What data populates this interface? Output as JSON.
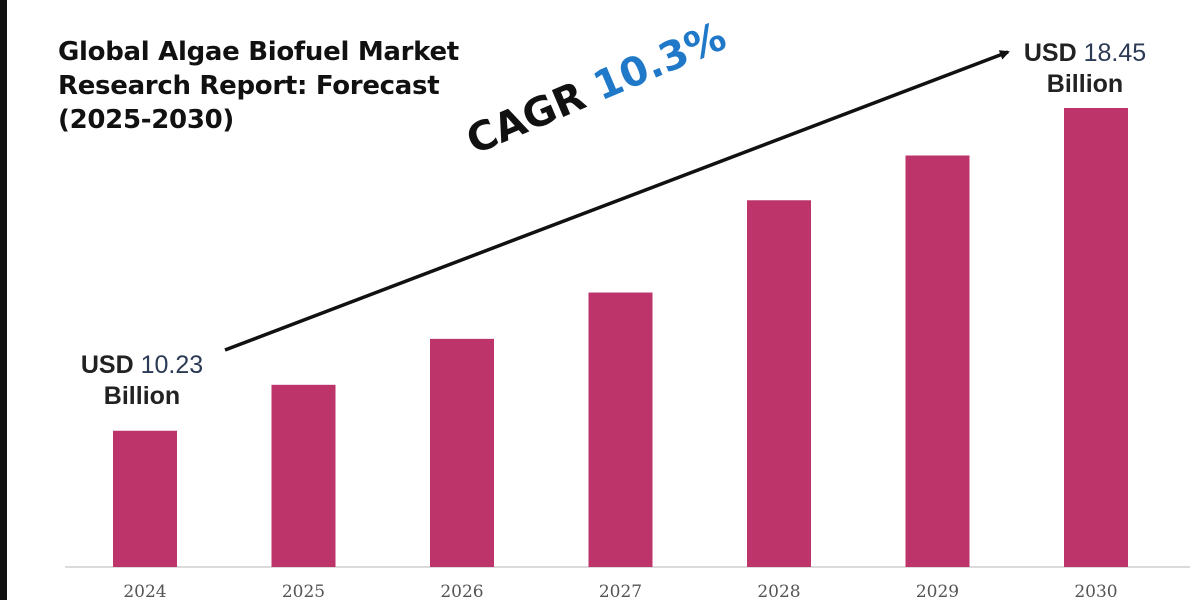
{
  "chart_data": {
    "type": "bar",
    "title": "Global Algae Biofuel Market Research Report: Forecast (2025-2030)",
    "categories": [
      "2024",
      "2025",
      "2026",
      "2027",
      "2028",
      "2029",
      "2030"
    ],
    "values": [
      10.23,
      11.4,
      12.57,
      13.75,
      16.1,
      17.24,
      18.45
    ],
    "unit": "USD Billion",
    "ylim": [
      6.76,
      21.2
    ],
    "grid": false,
    "bar_color": "#BC3469",
    "annotations": {
      "start": {
        "prefix": "USD",
        "value": "10.23",
        "suffix": "Billion"
      },
      "end": {
        "prefix": "USD",
        "value": "18.45",
        "suffix": "Billion"
      },
      "cagr_label": "CAGR",
      "cagr_value": "10.3%"
    }
  }
}
